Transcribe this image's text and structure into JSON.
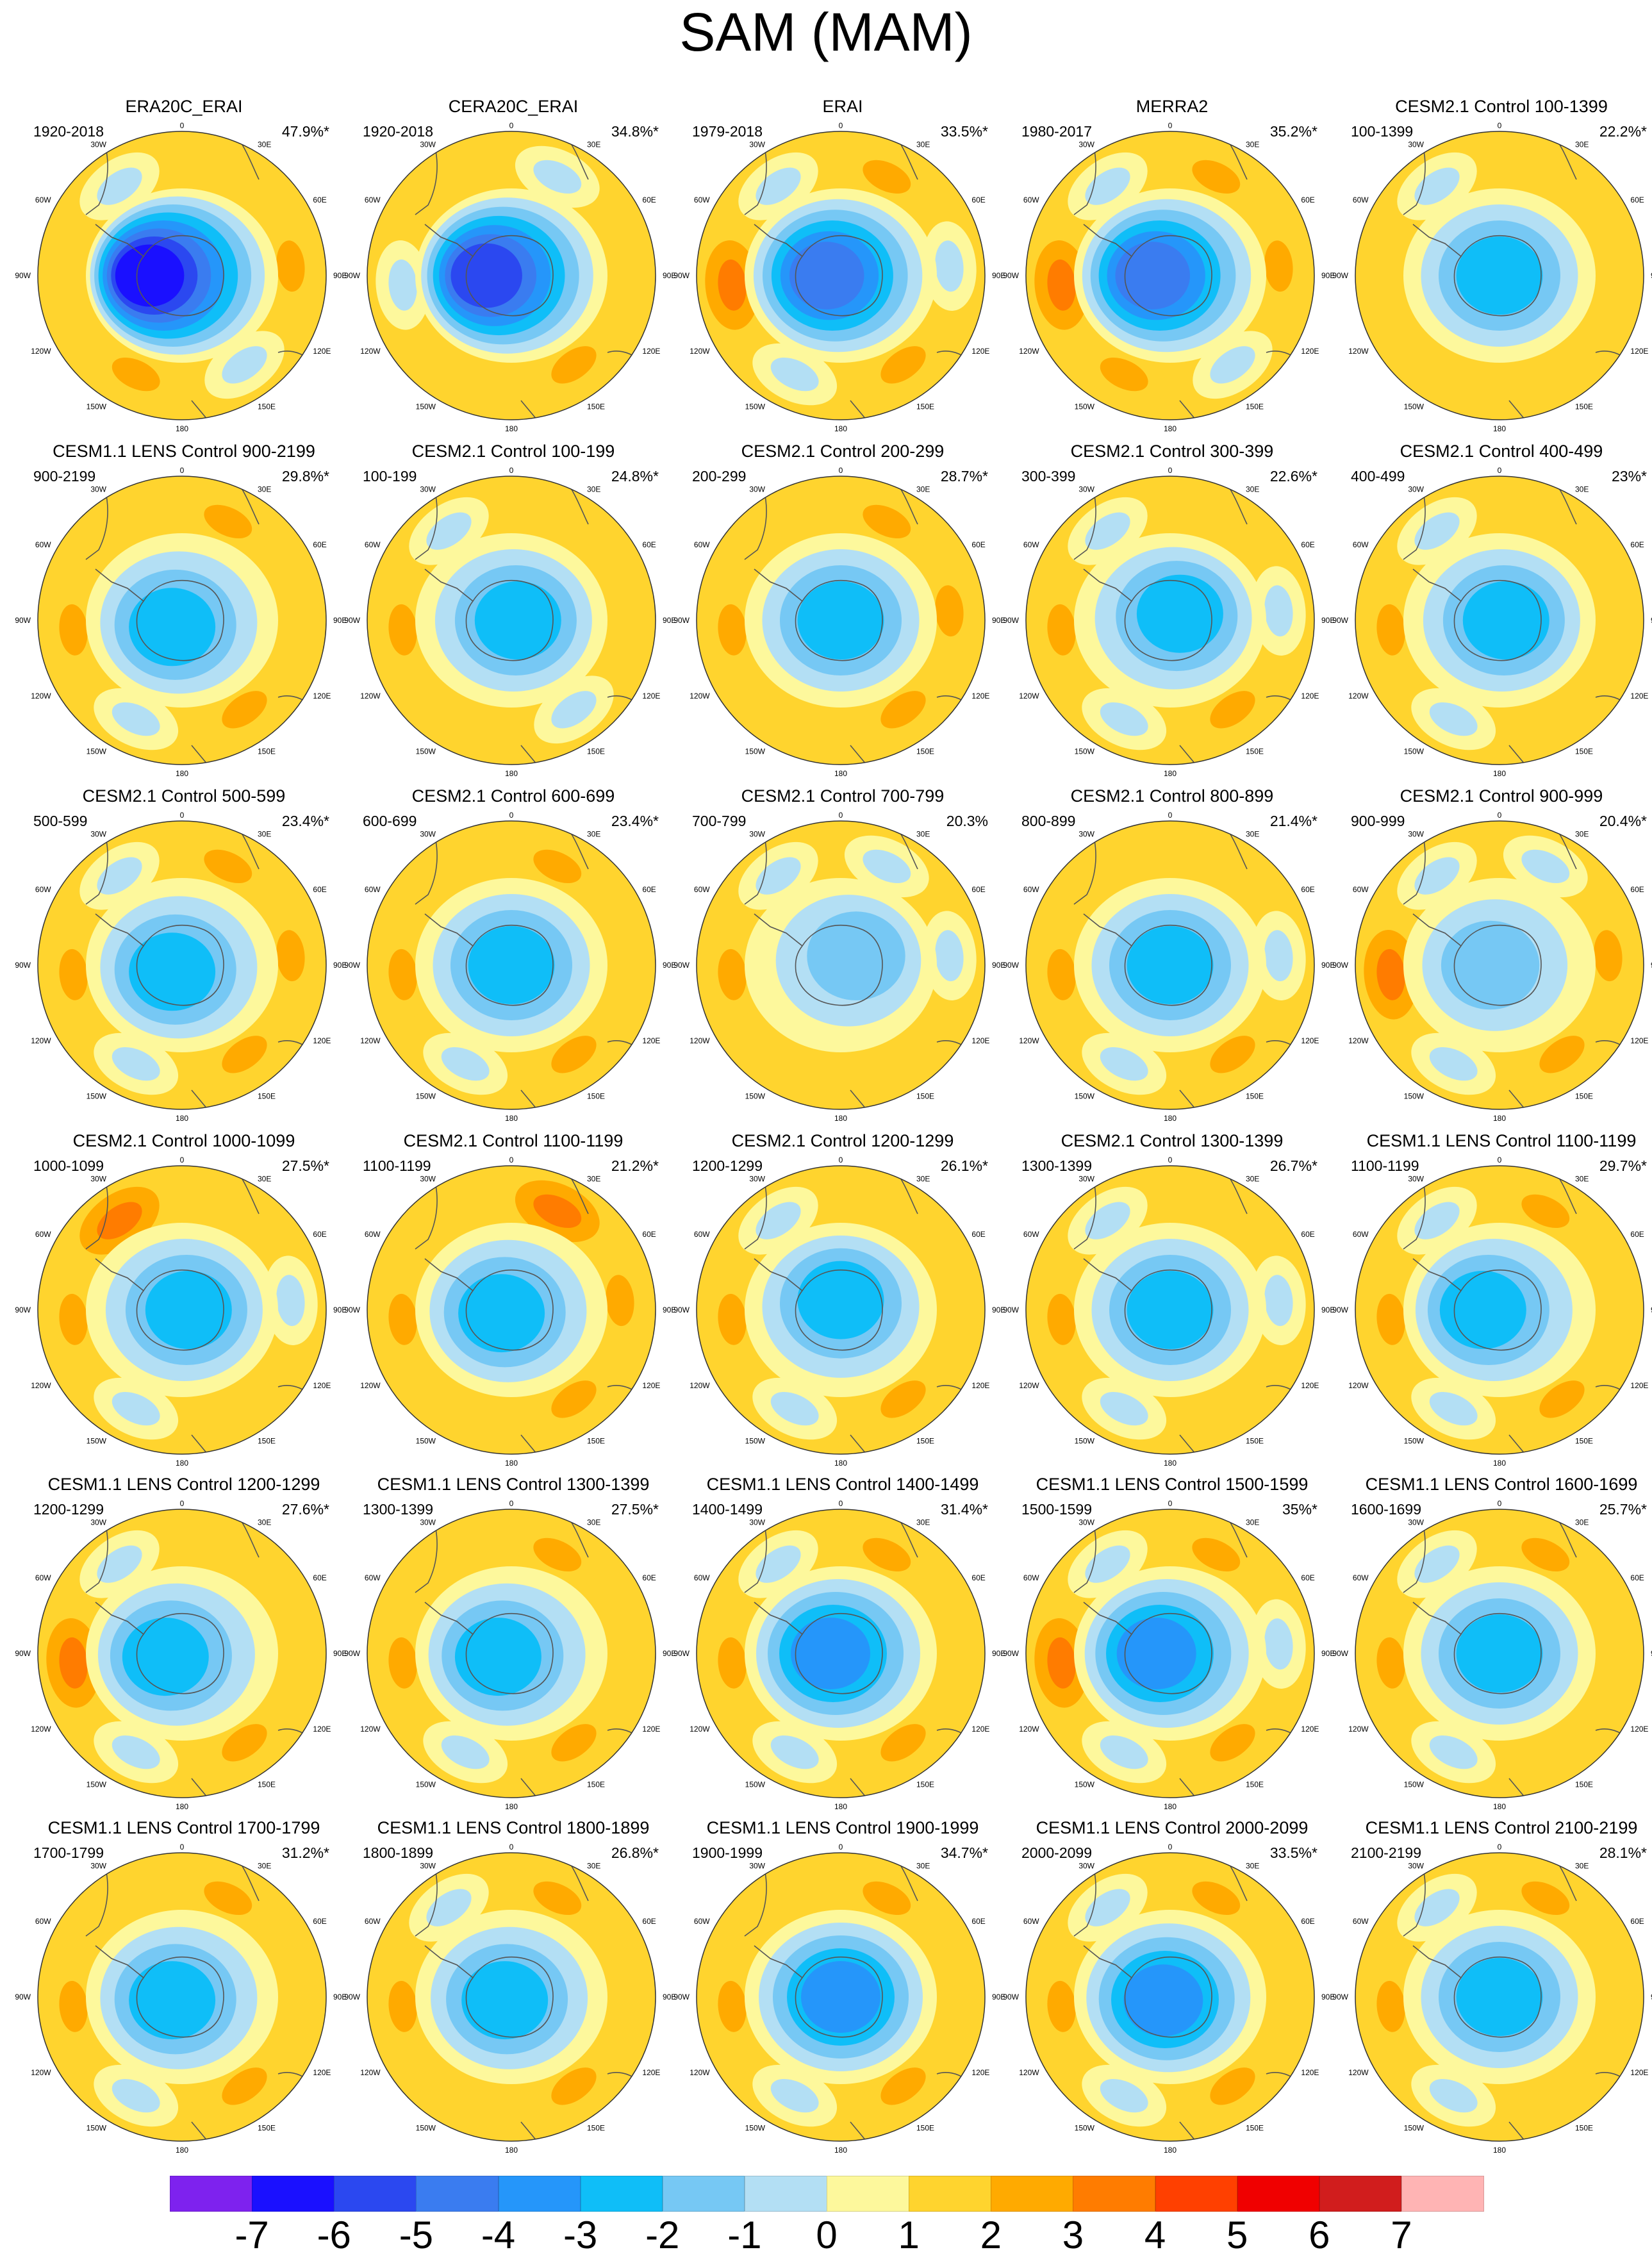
{
  "title": "SAM (MAM)",
  "chart_data": {
    "type": "polar-stereographic contour map panels",
    "colorbar": {
      "colors": [
        "#7e22ee",
        "#1a10ff",
        "#2b48f0",
        "#3a7cf0",
        "#2596fa",
        "#0fbef8",
        "#76c8f4",
        "#b3dff4",
        "#fdf89c",
        "#ffd42e",
        "#ffaa00",
        "#ff7c00",
        "#ff4000",
        "#f00000",
        "#d11d1d",
        "#ffb4b4"
      ],
      "tick_labels": [
        "-7",
        "-6",
        "-5",
        "-4",
        "-3",
        "-2",
        "-1",
        "0",
        "1",
        "2",
        "3",
        "4",
        "5",
        "6",
        "7"
      ]
    },
    "map_labels": {
      "top": "0",
      "bottom": "180",
      "left": [
        "30W",
        "60W",
        "90W",
        "120W",
        "150W"
      ],
      "right": [
        "30E",
        "60E",
        "90E",
        "120E",
        "150E"
      ]
    },
    "panels": [
      {
        "title": "ERA20C_ERAI",
        "period": "1920-2018",
        "variance": "47.9%*",
        "center": -7,
        "ring": [
          0,
          1,
          -1,
          1,
          0,
          -1
        ],
        "shift": [
          -18,
          0
        ]
      },
      {
        "title": "CERA20C_ERAI",
        "period": "1920-2018",
        "variance": "34.8%*",
        "center": -6,
        "ring": [
          -1,
          0,
          1,
          0,
          -1,
          0
        ],
        "shift": [
          -14,
          0
        ]
      },
      {
        "title": "ERAI",
        "period": "1979-2018",
        "variance": "33.5%*",
        "center": -5,
        "ring": [
          1,
          -1,
          1,
          -1,
          2,
          -1
        ],
        "shift": [
          -8,
          0
        ]
      },
      {
        "title": "MERRA2",
        "period": "1980-2017",
        "variance": "35.2%*",
        "center": -5,
        "ring": [
          1,
          1,
          -1,
          1,
          2,
          -1
        ],
        "shift": [
          -10,
          0
        ]
      },
      {
        "title": "CESM2.1 Control 100-1399",
        "period": "100-1399",
        "variance": "22.2%*",
        "center": -3,
        "ring": [
          0,
          0,
          0,
          0,
          0,
          -1
        ],
        "shift": [
          0,
          0
        ]
      },
      {
        "title": "CESM1.1 LENS Control 900-2199",
        "period": "900-2199",
        "variance": "29.8%*",
        "center": -3,
        "ring": [
          1,
          0,
          1,
          -1,
          1,
          0
        ],
        "shift": [
          -6,
          4
        ]
      },
      {
        "title": "CESM2.1 Control 100-199",
        "period": "100-199",
        "variance": "24.8%*",
        "center": -3,
        "ring": [
          0,
          0,
          -1,
          0,
          1,
          -1
        ],
        "shift": [
          4,
          0
        ]
      },
      {
        "title": "CESM2.1 Control 200-299",
        "period": "200-299",
        "variance": "28.7%*",
        "center": -3,
        "ring": [
          1,
          1,
          1,
          0,
          1,
          0
        ],
        "shift": [
          0,
          0
        ]
      },
      {
        "title": "CESM2.1 Control 300-399",
        "period": "300-399",
        "variance": "22.6%*",
        "center": -3,
        "ring": [
          0,
          -1,
          1,
          -1,
          1,
          -1
        ],
        "shift": [
          6,
          -4
        ]
      },
      {
        "title": "CESM2.1 Control 400-499",
        "period": "400-499",
        "variance": "23%*",
        "center": -3,
        "ring": [
          0,
          0,
          0,
          -1,
          1,
          -1
        ],
        "shift": [
          4,
          0
        ]
      },
      {
        "title": "CESM2.1 Control 500-599",
        "period": "500-599",
        "variance": "23.4%*",
        "center": -3,
        "ring": [
          1,
          1,
          1,
          -1,
          1,
          -1
        ],
        "shift": [
          -6,
          4
        ]
      },
      {
        "title": "CESM2.1 Control 600-699",
        "period": "600-699",
        "variance": "23.4%*",
        "center": -3,
        "ring": [
          1,
          0,
          1,
          -1,
          1,
          0
        ],
        "shift": [
          0,
          0
        ]
      },
      {
        "title": "CESM2.1 Control 700-799",
        "period": "700-799",
        "variance": "20.3%",
        "center": -2,
        "ring": [
          -1,
          -1,
          0,
          0,
          1,
          -1
        ],
        "shift": [
          10,
          -6
        ]
      },
      {
        "title": "CESM2.1 Control 800-899",
        "period": "800-899",
        "variance": "21.4%*",
        "center": -3,
        "ring": [
          0,
          -1,
          1,
          -1,
          1,
          0
        ],
        "shift": [
          0,
          0
        ]
      },
      {
        "title": "CESM2.1 Control 900-999",
        "period": "900-999",
        "variance": "20.4%*",
        "center": -2,
        "ring": [
          -1,
          1,
          1,
          -1,
          2,
          -1
        ],
        "shift": [
          -6,
          0
        ]
      },
      {
        "title": "CESM2.1 Control 1000-1099",
        "period": "1000-1099",
        "variance": "27.5%*",
        "center": -3,
        "ring": [
          0,
          -1,
          0,
          -1,
          1,
          2
        ],
        "shift": [
          4,
          0
        ]
      },
      {
        "title": "CESM2.1 Control 1100-1199",
        "period": "1100-1199",
        "variance": "21.2%*",
        "center": -3,
        "ring": [
          2,
          1,
          1,
          0,
          1,
          0
        ],
        "shift": [
          -6,
          2
        ]
      },
      {
        "title": "CESM2.1 Control 1200-1299",
        "period": "1200-1299",
        "variance": "26.1%*",
        "center": -3,
        "ring": [
          0,
          0,
          1,
          -1,
          1,
          -1
        ],
        "shift": [
          0,
          -6
        ]
      },
      {
        "title": "CESM2.1 Control 1300-1399",
        "period": "1300-1399",
        "variance": "26.7%*",
        "center": -3,
        "ring": [
          0,
          -1,
          0,
          -1,
          1,
          -1
        ],
        "shift": [
          0,
          0
        ]
      },
      {
        "title": "CESM1.1 LENS Control 1100-1199",
        "period": "1100-1199",
        "variance": "29.7%*",
        "center": -3,
        "ring": [
          1,
          0,
          1,
          -1,
          1,
          -1
        ],
        "shift": [
          -10,
          0
        ]
      },
      {
        "title": "CESM1.1 LENS Control 1200-1299",
        "period": "1200-1299",
        "variance": "27.6%*",
        "center": -3,
        "ring": [
          0,
          0,
          1,
          -1,
          2,
          -1
        ],
        "shift": [
          -10,
          2
        ]
      },
      {
        "title": "CESM1.1 LENS Control 1300-1399",
        "period": "1300-1399",
        "variance": "27.5%*",
        "center": -3,
        "ring": [
          1,
          0,
          1,
          -1,
          1,
          0
        ],
        "shift": [
          -8,
          2
        ]
      },
      {
        "title": "CESM1.1 LENS Control 1400-1499",
        "period": "1400-1499",
        "variance": "31.4%*",
        "center": -4,
        "ring": [
          1,
          0,
          1,
          -1,
          1,
          -1
        ],
        "shift": [
          -6,
          0
        ]
      },
      {
        "title": "CESM1.1 LENS Control 1500-1599",
        "period": "1500-1599",
        "variance": "35%*",
        "center": -4,
        "ring": [
          1,
          -1,
          1,
          -1,
          2,
          -1
        ],
        "shift": [
          -8,
          0
        ]
      },
      {
        "title": "CESM1.1 LENS Control 1600-1699",
        "period": "1600-1699",
        "variance": "25.7%*",
        "center": -3,
        "ring": [
          1,
          0,
          0,
          -1,
          1,
          -1
        ],
        "shift": [
          0,
          0
        ]
      },
      {
        "title": "CESM1.1 LENS Control 1700-1799",
        "period": "1700-1799",
        "variance": "31.2%*",
        "center": -3,
        "ring": [
          1,
          0,
          1,
          -1,
          1,
          0
        ],
        "shift": [
          -6,
          2
        ]
      },
      {
        "title": "CESM1.1 LENS Control 1800-1899",
        "period": "1800-1899",
        "variance": "26.8%*",
        "center": -3,
        "ring": [
          1,
          0,
          1,
          0,
          1,
          -1
        ],
        "shift": [
          -4,
          2
        ]
      },
      {
        "title": "CESM1.1 LENS Control 1900-1999",
        "period": "1900-1999",
        "variance": "34.7%*",
        "center": -4,
        "ring": [
          1,
          0,
          1,
          -1,
          1,
          0
        ],
        "shift": [
          0,
          0
        ]
      },
      {
        "title": "CESM1.1 LENS Control 2000-2099",
        "period": "2000-2099",
        "variance": "33.5%*",
        "center": -4,
        "ring": [
          1,
          0,
          1,
          -1,
          1,
          -1
        ],
        "shift": [
          -4,
          2
        ]
      },
      {
        "title": "CESM1.1 LENS Control 2100-2199",
        "period": "2100-2199",
        "variance": "28.1%*",
        "center": -3,
        "ring": [
          1,
          0,
          0,
          -1,
          1,
          -1
        ],
        "shift": [
          0,
          0
        ]
      }
    ]
  }
}
